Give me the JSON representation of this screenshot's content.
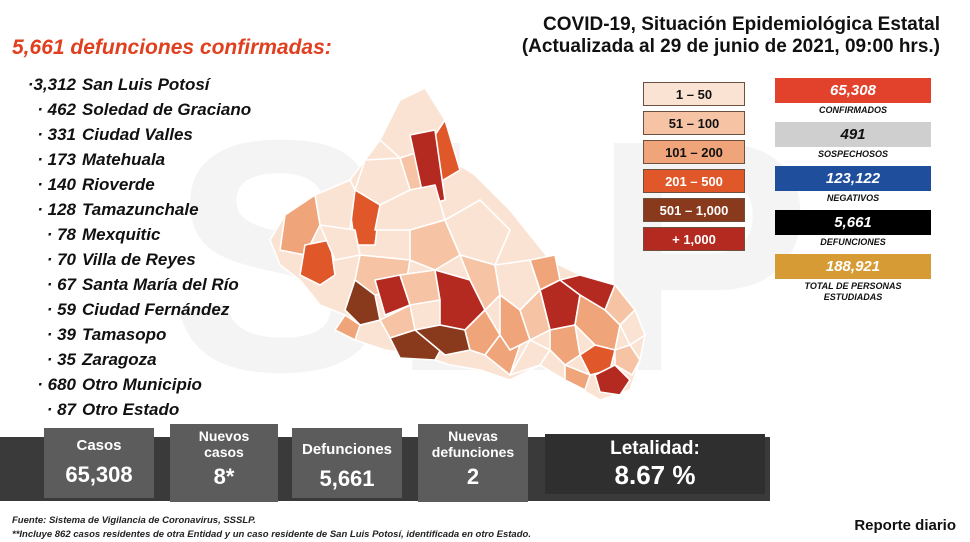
{
  "header": {
    "title_line1": "COVID-19, Situación Epidemiológica Estatal",
    "title_line2": "(Actualizada al 29 de junio de 2021, 09:00 hrs.)"
  },
  "deaths_heading": "5,661 defunciones confirmadas:",
  "municipalities": [
    {
      "count": "·3,312",
      "name": "San Luis Potosí"
    },
    {
      "count": "· 462",
      "name": "Soledad de Graciano"
    },
    {
      "count": "· 331",
      "name": "Ciudad Valles"
    },
    {
      "count": "· 173",
      "name": "Matehuala"
    },
    {
      "count": "· 140",
      "name": "Rioverde"
    },
    {
      "count": "· 128",
      "name": "Tamazunchale"
    },
    {
      "count": "· 78",
      "name": "Mexquitic"
    },
    {
      "count": "· 70",
      "name": "Villa de Reyes"
    },
    {
      "count": "· 67",
      "name": "Santa María del Río"
    },
    {
      "count": "· 59",
      "name": "Ciudad Fernández"
    },
    {
      "count": "· 39",
      "name": "Tamasopo"
    },
    {
      "count": "· 35",
      "name": "Zaragoza"
    },
    {
      "count": "· 680",
      "name": "Otro Municipio"
    },
    {
      "count": "· 87",
      "name": "Otro Estado"
    }
  ],
  "legend": [
    {
      "label": "1 – 50",
      "bg": "#fbe3d3",
      "fg": "#111111"
    },
    {
      "label": "51 – 100",
      "bg": "#f6c4a4",
      "fg": "#111111"
    },
    {
      "label": "101 – 200",
      "bg": "#f0a47a",
      "fg": "#111111"
    },
    {
      "label": "201 – 500",
      "bg": "#e0572a",
      "fg": "#ffffff"
    },
    {
      "label": "501 – 1,000",
      "bg": "#8a3a1c",
      "fg": "#ffffff"
    },
    {
      "label": "+ 1,000",
      "bg": "#b52a20",
      "fg": "#ffffff"
    }
  ],
  "stats": [
    {
      "value": "65,308",
      "label": "CONFIRMADOS",
      "bg": "#e2412c",
      "fg": "#ffffff"
    },
    {
      "value": "491",
      "label": "SOSPECHOSOS",
      "bg": "#cfcfcf",
      "fg": "#111111"
    },
    {
      "value": "123,122",
      "label": "NEGATIVOS",
      "bg": "#1f4f9c",
      "fg": "#ffffff"
    },
    {
      "value": "5,661",
      "label": "DEFUNCIONES",
      "bg": "#000000",
      "fg": "#ffffff"
    },
    {
      "value": "188,921",
      "label": "TOTAL DE PERSONAS ESTUDIADAS",
      "bg": "#d79b36",
      "fg": "#ffffff"
    }
  ],
  "summary": {
    "casos_label": "Casos",
    "casos_value": "65,308",
    "nuevos_casos_label1": "Nuevos",
    "nuevos_casos_label2": "casos",
    "nuevos_casos_value": "8*",
    "defunciones_label": "Defunciones",
    "defunciones_value": "5,661",
    "nuevas_def_label1": "Nuevas",
    "nuevas_def_label2": "defunciones",
    "nuevas_def_value": "2",
    "letalidad_label": "Letalidad:",
    "letalidad_value": "8.67 %"
  },
  "footer": {
    "source": "Fuente: Sistema de Vigilancia de Coronavirus, SSSLP.",
    "note": "**Incluye 862 casos residentes de otra Entidad y un caso residente de San Luis Potosí, identificada en otro Estado.",
    "daily": "Reporte diario"
  }
}
